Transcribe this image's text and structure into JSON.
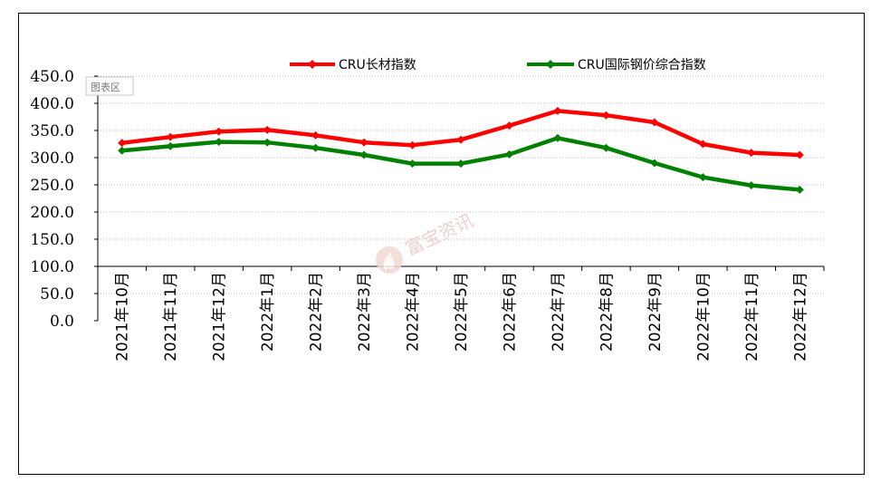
{
  "chart_data": {
    "type": "line",
    "title": "",
    "xlabel": "",
    "ylabel": "",
    "categories": [
      "2021年10月",
      "2021年11月",
      "2021年12月",
      "2022年1月",
      "2022年2月",
      "2022年3月",
      "2022年4月",
      "2022年5月",
      "2022年6月",
      "2022年7月",
      "2022年8月",
      "2022年9月",
      "2022年10月",
      "2022年11月",
      "2022年12月"
    ],
    "series": [
      {
        "name": "CRU长材指数",
        "color": "#ff0000",
        "values": [
          327,
          338,
          348,
          351,
          341,
          328,
          323,
          333,
          359,
          386,
          378,
          365,
          325,
          309,
          305
        ]
      },
      {
        "name": "CRU国际钢价综合指数",
        "color": "#008000",
        "values": [
          313,
          321,
          329,
          328,
          318,
          305,
          289,
          289,
          306,
          336,
          318,
          290,
          264,
          249,
          241
        ]
      }
    ],
    "ylim": [
      0,
      450
    ],
    "yticks": [
      "0.0",
      "50.0",
      "100.0",
      "150.0",
      "200.0",
      "250.0",
      "300.0",
      "350.0",
      "400.0",
      "450.0"
    ],
    "grid": true,
    "legend_position": "top",
    "plot_area_label": "图表区",
    "watermark": "富宝资讯"
  }
}
